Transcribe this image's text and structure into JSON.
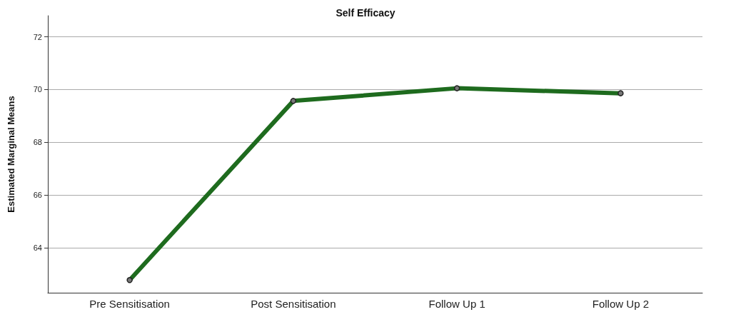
{
  "chart_data": {
    "type": "line",
    "title": "Self Efficacy",
    "ylabel": "Estimated Marginal Means",
    "categories": [
      "Pre Sensitisation",
      "Post Sensitisation",
      "Follow Up 1",
      "Follow Up 2"
    ],
    "series": [
      {
        "color": "#1e6b1e",
        "values": [
          62.78,
          69.57,
          70.05,
          69.86
        ]
      }
    ],
    "ylim": [
      62.3,
      72.8
    ],
    "yticks": [
      64,
      66,
      68,
      70,
      72
    ],
    "grid": "y",
    "marker": "circle",
    "line_style": "solid"
  }
}
